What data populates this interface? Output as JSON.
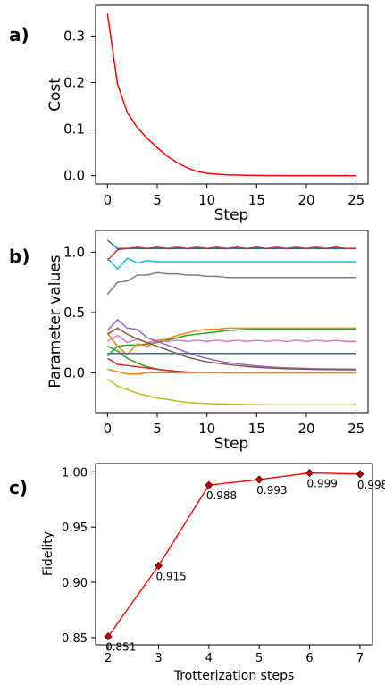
{
  "chart_data": [
    {
      "panel_label": "a)",
      "type": "line",
      "xlabel": "Step",
      "ylabel": "Cost",
      "xlim": [
        -1.2,
        26.2
      ],
      "ylim": [
        -0.018,
        0.366
      ],
      "xticks": [
        0,
        5,
        10,
        15,
        20,
        25
      ],
      "yticks": [
        0.0,
        0.1,
        0.2,
        0.3
      ],
      "xtick_labels": [
        "0",
        "5",
        "10",
        "15",
        "20",
        "25"
      ],
      "ytick_labels": [
        "0.0",
        "0.1",
        "0.2",
        "0.3"
      ],
      "grid": false,
      "series": [
        {
          "color": "#ff0000",
          "x": [
            0,
            1,
            2,
            3,
            4,
            5,
            6,
            7,
            8,
            9,
            10,
            11,
            12,
            13,
            14,
            15,
            16,
            17,
            18,
            19,
            20,
            21,
            22,
            23,
            24,
            25
          ],
          "y": [
            0.348,
            0.197,
            0.135,
            0.103,
            0.08,
            0.06,
            0.042,
            0.028,
            0.017,
            0.009,
            0.005,
            0.003,
            0.0018,
            0.0012,
            0.0008,
            0.0005,
            0.0003,
            0.0002,
            0.0001,
            0.0001,
            0,
            0,
            0,
            0,
            0,
            0
          ]
        }
      ]
    },
    {
      "panel_label": "b)",
      "type": "line",
      "xlabel": "Step",
      "ylabel": "Parameter values",
      "xlim": [
        -1.2,
        26.2
      ],
      "ylim": [
        -0.33,
        1.18
      ],
      "xticks": [
        0,
        5,
        10,
        15,
        20,
        25
      ],
      "yticks": [
        0.0,
        0.5,
        1.0
      ],
      "xtick_labels": [
        "0",
        "5",
        "10",
        "15",
        "20",
        "25"
      ],
      "ytick_labels": [
        "0.0",
        "0.5",
        "1.0"
      ],
      "grid": false,
      "series": [
        {
          "color": "#1f77b4",
          "x": [
            0,
            1,
            2,
            3,
            4,
            5,
            6,
            7,
            8,
            9,
            10,
            11,
            12,
            13,
            14,
            15,
            16,
            17,
            18,
            19,
            20,
            21,
            22,
            23,
            24,
            25
          ],
          "y": [
            1.1,
            1.03,
            1.03,
            1.03,
            1.03,
            1.03,
            1.03,
            1.03,
            1.03,
            1.03,
            1.03,
            1.03,
            1.03,
            1.03,
            1.03,
            1.03,
            1.03,
            1.03,
            1.03,
            1.03,
            1.03,
            1.03,
            1.03,
            1.03,
            1.03,
            1.03
          ]
        },
        {
          "color": "#d62728",
          "x": [
            0,
            1,
            2,
            3,
            4,
            5,
            6,
            7,
            8,
            9,
            10,
            11,
            12,
            13,
            14,
            15,
            16,
            17,
            18,
            19,
            20,
            21,
            22,
            23,
            24,
            25
          ],
          "y": [
            0.93,
            1.02,
            1.03,
            1.04,
            1.03,
            1.04,
            1.03,
            1.04,
            1.03,
            1.04,
            1.03,
            1.04,
            1.03,
            1.04,
            1.03,
            1.04,
            1.03,
            1.04,
            1.03,
            1.04,
            1.03,
            1.04,
            1.03,
            1.04,
            1.03,
            1.03
          ]
        },
        {
          "color": "#17becf",
          "x": [
            0,
            1,
            2,
            3,
            4,
            5,
            6,
            7,
            8,
            9,
            10,
            11,
            12,
            13,
            14,
            15,
            16,
            17,
            18,
            19,
            20,
            21,
            22,
            23,
            24,
            25
          ],
          "y": [
            0.95,
            0.86,
            0.95,
            0.91,
            0.93,
            0.92,
            0.92,
            0.92,
            0.92,
            0.92,
            0.92,
            0.92,
            0.92,
            0.92,
            0.92,
            0.92,
            0.92,
            0.92,
            0.92,
            0.92,
            0.92,
            0.92,
            0.92,
            0.92,
            0.92,
            0.92
          ]
        },
        {
          "color": "#7f7f7f",
          "x": [
            0,
            1,
            2,
            3,
            4,
            5,
            6,
            7,
            8,
            9,
            10,
            11,
            12,
            13,
            14,
            15,
            16,
            17,
            18,
            19,
            20,
            21,
            22,
            23,
            24,
            25
          ],
          "y": [
            0.65,
            0.75,
            0.76,
            0.81,
            0.81,
            0.83,
            0.82,
            0.82,
            0.81,
            0.81,
            0.8,
            0.8,
            0.79,
            0.79,
            0.79,
            0.79,
            0.79,
            0.79,
            0.79,
            0.79,
            0.79,
            0.79,
            0.79,
            0.79,
            0.79,
            0.79
          ]
        },
        {
          "color": "#2ca02c",
          "x": [
            0,
            1,
            2,
            3,
            4,
            5,
            6,
            7,
            8,
            9,
            10,
            11,
            12,
            13,
            14,
            15,
            16,
            17,
            18,
            19,
            20,
            21,
            22,
            23,
            24,
            25
          ],
          "y": [
            0.14,
            0.22,
            0.23,
            0.23,
            0.24,
            0.25,
            0.27,
            0.29,
            0.31,
            0.32,
            0.33,
            0.34,
            0.35,
            0.355,
            0.36,
            0.36,
            0.36,
            0.36,
            0.36,
            0.36,
            0.36,
            0.36,
            0.36,
            0.36,
            0.36,
            0.36
          ]
        },
        {
          "color": "#ff7f0e",
          "x": [
            0,
            1,
            2,
            3,
            4,
            5,
            6,
            7,
            8,
            9,
            10,
            11,
            12,
            13,
            14,
            15,
            16,
            17,
            18,
            19,
            20,
            21,
            22,
            23,
            24,
            25
          ],
          "y": [
            0.33,
            0.22,
            0.15,
            0.24,
            0.22,
            0.27,
            0.28,
            0.31,
            0.33,
            0.35,
            0.36,
            0.36,
            0.37,
            0.37,
            0.37,
            0.37,
            0.37,
            0.37,
            0.37,
            0.37,
            0.37,
            0.37,
            0.37,
            0.37,
            0.37,
            0.37
          ]
        },
        {
          "color": "#e377c2",
          "x": [
            0,
            1,
            2,
            3,
            4,
            5,
            6,
            7,
            8,
            9,
            10,
            11,
            12,
            13,
            14,
            15,
            16,
            17,
            18,
            19,
            20,
            21,
            22,
            23,
            24,
            25
          ],
          "y": [
            0.26,
            0.31,
            0.25,
            0.28,
            0.25,
            0.27,
            0.26,
            0.27,
            0.26,
            0.27,
            0.26,
            0.27,
            0.26,
            0.27,
            0.26,
            0.27,
            0.26,
            0.27,
            0.26,
            0.27,
            0.26,
            0.27,
            0.26,
            0.27,
            0.26,
            0.26
          ]
        },
        {
          "color": "#9467bd",
          "x": [
            0,
            1,
            2,
            3,
            4,
            5,
            6,
            7,
            8,
            9,
            10,
            11,
            12,
            13,
            14,
            15,
            16,
            17,
            18,
            19,
            20,
            21,
            22,
            23,
            24,
            25
          ],
          "y": [
            0.35,
            0.44,
            0.37,
            0.36,
            0.29,
            0.26,
            0.23,
            0.2,
            0.17,
            0.14,
            0.12,
            0.1,
            0.085,
            0.075,
            0.065,
            0.057,
            0.05,
            0.045,
            0.041,
            0.038,
            0.036,
            0.034,
            0.033,
            0.032,
            0.031,
            0.03
          ]
        },
        {
          "color": "#8c564b",
          "x": [
            0,
            1,
            2,
            3,
            4,
            5,
            6,
            7,
            8,
            9,
            10,
            11,
            12,
            13,
            14,
            15,
            16,
            17,
            18,
            19,
            20,
            21,
            22,
            23,
            24,
            25
          ],
          "y": [
            0.32,
            0.37,
            0.32,
            0.28,
            0.25,
            0.22,
            0.19,
            0.16,
            0.13,
            0.11,
            0.09,
            0.08,
            0.07,
            0.06,
            0.052,
            0.046,
            0.041,
            0.037,
            0.034,
            0.032,
            0.03,
            0.028,
            0.027,
            0.026,
            0.025,
            0.025
          ]
        },
        {
          "color": "#2ca02c",
          "x": [
            0,
            1,
            2,
            3,
            4,
            5,
            6,
            7,
            8,
            9,
            10,
            11,
            12,
            13,
            14,
            15,
            16,
            17,
            18,
            19,
            20,
            21,
            22,
            23,
            24,
            25
          ],
          "y": [
            0.22,
            0.18,
            0.12,
            0.08,
            0.05,
            0.03,
            0.02,
            0.012,
            0.007,
            0.004,
            0.002,
            0.001,
            0,
            0,
            0,
            0,
            0,
            0,
            0,
            0,
            0,
            0,
            0,
            0,
            0,
            0
          ]
        },
        {
          "color": "#1f77b4",
          "x": [
            0,
            1,
            2,
            3,
            4,
            5,
            6,
            7,
            8,
            9,
            10,
            11,
            12,
            13,
            14,
            15,
            16,
            17,
            18,
            19,
            20,
            21,
            22,
            23,
            24,
            25
          ],
          "y": [
            0.16,
            0.16,
            0.16,
            0.16,
            0.16,
            0.16,
            0.16,
            0.16,
            0.16,
            0.16,
            0.16,
            0.16,
            0.16,
            0.16,
            0.16,
            0.16,
            0.16,
            0.16,
            0.16,
            0.16,
            0.16,
            0.16,
            0.16,
            0.16,
            0.16,
            0.16
          ]
        },
        {
          "color": "#d62728",
          "x": [
            0,
            1,
            2,
            3,
            4,
            5,
            6,
            7,
            8,
            9,
            10,
            11,
            12,
            13,
            14,
            15,
            16,
            17,
            18,
            19,
            20,
            21,
            22,
            23,
            24,
            25
          ],
          "y": [
            0.12,
            0.07,
            0.06,
            0.05,
            0.04,
            0.03,
            0.02,
            0.012,
            0.006,
            0.003,
            0.002,
            0.001,
            0,
            0,
            0,
            0,
            0,
            0,
            0,
            0,
            0,
            0,
            0,
            0,
            0,
            0
          ]
        },
        {
          "color": "#ff7f0e",
          "x": [
            0,
            1,
            2,
            3,
            4,
            5,
            6,
            7,
            8,
            9,
            10,
            11,
            12,
            13,
            14,
            15,
            16,
            17,
            18,
            19,
            20,
            21,
            22,
            23,
            24,
            25
          ],
          "y": [
            0.03,
            0.01,
            -0.01,
            -0.01,
            0.0,
            0.0,
            0.0,
            0.0,
            0.0,
            0.0,
            0.0,
            0.0,
            0.0,
            0.0,
            0.0,
            0.0,
            0.0,
            0.0,
            0.0,
            0.0,
            0.0,
            0.0,
            0.0,
            0.0,
            0.0,
            0.0
          ]
        },
        {
          "color": "#bcbd22",
          "x": [
            0,
            1,
            2,
            3,
            4,
            5,
            6,
            7,
            8,
            9,
            10,
            11,
            12,
            13,
            14,
            15,
            16,
            17,
            18,
            19,
            20,
            21,
            22,
            23,
            24,
            25
          ],
          "y": [
            -0.05,
            -0.11,
            -0.14,
            -0.17,
            -0.19,
            -0.21,
            -0.22,
            -0.235,
            -0.245,
            -0.25,
            -0.255,
            -0.258,
            -0.26,
            -0.262,
            -0.263,
            -0.264,
            -0.265,
            -0.265,
            -0.265,
            -0.265,
            -0.265,
            -0.265,
            -0.265,
            -0.265,
            -0.265,
            -0.265
          ]
        }
      ]
    },
    {
      "panel_label": "c)",
      "type": "line",
      "xlabel": "Trotterization steps",
      "ylabel": "Fidelity",
      "xlim": [
        1.75,
        7.25
      ],
      "ylim": [
        0.8435,
        1.0075
      ],
      "xticks": [
        2,
        3,
        4,
        5,
        6,
        7
      ],
      "yticks": [
        0.85,
        0.9,
        0.95,
        1.0
      ],
      "xtick_labels": [
        "2",
        "3",
        "4",
        "5",
        "6",
        "7"
      ],
      "ytick_labels": [
        "0.85",
        "0.90",
        "0.95",
        "1.00"
      ],
      "grid": false,
      "series": [
        {
          "color": "#ff0000",
          "marker": "diamond",
          "marker_color": "#c00000",
          "x": [
            2,
            3,
            4,
            5,
            6,
            7
          ],
          "y": [
            0.851,
            0.915,
            0.988,
            0.993,
            0.999,
            0.998
          ],
          "data_labels": [
            "0.851",
            "0.915",
            "0.988",
            "0.993",
            "0.999",
            "0.998"
          ]
        }
      ]
    }
  ]
}
